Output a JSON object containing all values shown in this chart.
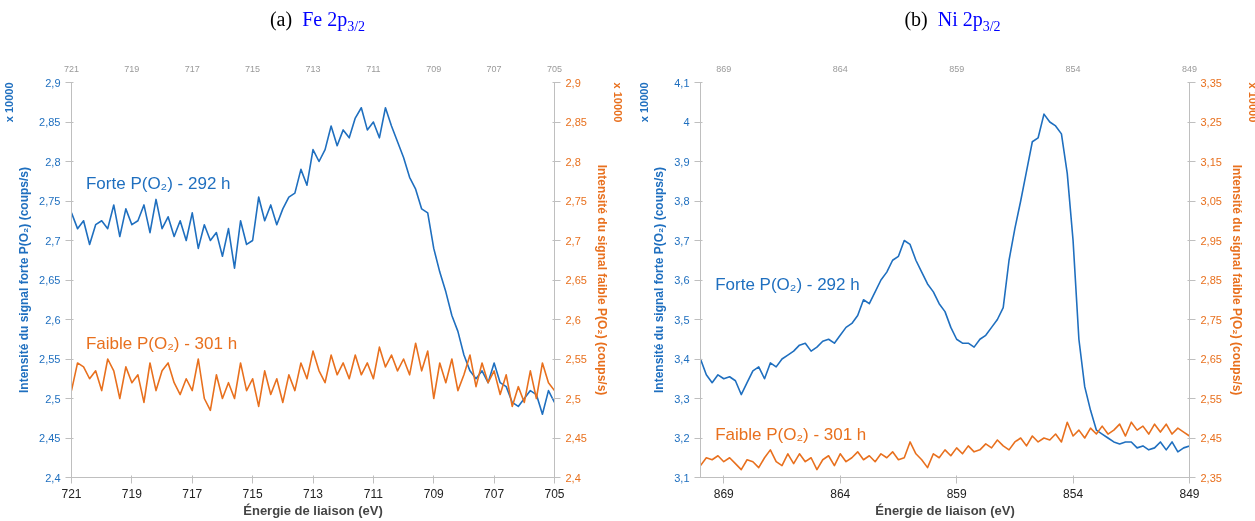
{
  "chart_data": [
    {
      "type": "line",
      "title": "(a) Fe 2p$_{3/2}$",
      "xlabel": "Énergie de liaison (eV)",
      "ylabel": "Intensité du signal forte P(O₂) (coups/s)",
      "y2label": "Intensité du signal faible P(O₂) (coups/s)",
      "annotations": [
        "x 10000",
        "x 10000"
      ],
      "legend": false,
      "grid": false,
      "marker": "none",
      "line_style": "solid",
      "x": [
        721.0,
        720.8,
        720.6,
        720.4,
        720.2,
        720.0,
        719.8,
        719.6,
        719.4,
        719.2,
        719.0,
        718.8,
        718.6,
        718.4,
        718.2,
        718.0,
        717.8,
        717.6,
        717.4,
        717.2,
        717.0,
        716.8,
        716.6,
        716.4,
        716.2,
        716.0,
        715.8,
        715.6,
        715.4,
        715.2,
        715.0,
        714.8,
        714.6,
        714.4,
        714.2,
        714.0,
        713.8,
        713.6,
        713.4,
        713.2,
        713.0,
        712.8,
        712.6,
        712.4,
        712.2,
        712.0,
        711.8,
        711.6,
        711.4,
        711.2,
        711.0,
        710.8,
        710.6,
        710.4,
        710.2,
        710.0,
        709.8,
        709.6,
        709.4,
        709.2,
        709.0,
        708.8,
        708.6,
        708.4,
        708.2,
        708.0,
        707.8,
        707.6,
        707.4,
        707.2,
        707.0,
        706.8,
        706.6,
        706.4,
        706.2,
        706.0,
        705.8,
        705.6,
        705.4,
        705.2,
        705.0
      ],
      "series": [
        {
          "name": "Forte P(O₂) - 292 h",
          "color": "#1f6fbf",
          "values": [
            2.735,
            2.715,
            2.725,
            2.695,
            2.72,
            2.725,
            2.715,
            2.745,
            2.705,
            2.74,
            2.72,
            2.725,
            2.745,
            2.71,
            2.752,
            2.715,
            2.73,
            2.705,
            2.725,
            2.7,
            2.735,
            2.69,
            2.72,
            2.7,
            2.71,
            2.68,
            2.715,
            2.665,
            2.725,
            2.695,
            2.7,
            2.755,
            2.725,
            2.745,
            2.72,
            2.74,
            2.755,
            2.76,
            2.79,
            2.77,
            2.815,
            2.8,
            2.815,
            2.845,
            2.82,
            2.84,
            2.83,
            2.855,
            2.868,
            2.84,
            2.85,
            2.83,
            2.868,
            2.845,
            2.825,
            2.805,
            2.78,
            2.765,
            2.74,
            2.735,
            2.69,
            2.66,
            2.635,
            2.605,
            2.585,
            2.555,
            2.535,
            2.525,
            2.535,
            2.52,
            2.545,
            2.52,
            2.515,
            2.495,
            2.49,
            2.5,
            2.51,
            2.505,
            2.48,
            2.51,
            2.495
          ]
        },
        {
          "name": "Faible P(O₂) - 301 h",
          "color": "#e8701e",
          "axis": "y2",
          "values": [
            2.51,
            2.545,
            2.54,
            2.525,
            2.535,
            2.51,
            2.55,
            2.535,
            2.5,
            2.54,
            2.52,
            2.53,
            2.495,
            2.545,
            2.51,
            2.535,
            2.545,
            2.52,
            2.505,
            2.525,
            2.51,
            2.55,
            2.5,
            2.485,
            2.53,
            2.5,
            2.52,
            2.5,
            2.545,
            2.51,
            2.525,
            2.49,
            2.535,
            2.505,
            2.525,
            2.495,
            2.53,
            2.51,
            2.545,
            2.525,
            2.56,
            2.535,
            2.52,
            2.555,
            2.53,
            2.545,
            2.525,
            2.555,
            2.53,
            2.545,
            2.525,
            2.565,
            2.54,
            2.555,
            2.535,
            2.55,
            2.53,
            2.57,
            2.535,
            2.56,
            2.5,
            2.545,
            2.52,
            2.55,
            2.51,
            2.53,
            2.555,
            2.515,
            2.545,
            2.52,
            2.535,
            2.505,
            2.53,
            2.49,
            2.515,
            2.495,
            2.535,
            2.5,
            2.545,
            2.52,
            2.51
          ]
        }
      ],
      "xlim": [
        721,
        705
      ],
      "xticks": [
        721,
        719,
        717,
        715,
        713,
        711,
        709,
        707,
        705
      ],
      "x2lim": [
        721,
        705
      ],
      "x2ticks": [
        721,
        719,
        717,
        715,
        713,
        711,
        709,
        707,
        705
      ],
      "ylim": [
        2.4,
        2.9
      ],
      "yticks": [
        {
          "value": 2.4,
          "label": "2,4"
        },
        {
          "value": 2.45,
          "label": "2,45"
        },
        {
          "value": 2.5,
          "label": "2,5"
        },
        {
          "value": 2.55,
          "label": "2,55"
        },
        {
          "value": 2.6,
          "label": "2,6"
        },
        {
          "value": 2.65,
          "label": "2,65"
        },
        {
          "value": 2.7,
          "label": "2,7"
        },
        {
          "value": 2.75,
          "label": "2,75"
        },
        {
          "value": 2.8,
          "label": "2,8"
        },
        {
          "value": 2.85,
          "label": "2,85"
        },
        {
          "value": 2.9,
          "label": "2,9"
        }
      ],
      "y2lim": [
        2.4,
        2.9
      ],
      "y2ticks": [
        {
          "value": 2.4,
          "label": "2,4"
        },
        {
          "value": 2.45,
          "label": "2,45"
        },
        {
          "value": 2.5,
          "label": "2,5"
        },
        {
          "value": 2.55,
          "label": "2,55"
        },
        {
          "value": 2.6,
          "label": "2,6"
        },
        {
          "value": 2.65,
          "label": "2,65"
        },
        {
          "value": 2.7,
          "label": "2,7"
        },
        {
          "value": 2.75,
          "label": "2,75"
        },
        {
          "value": 2.8,
          "label": "2,8"
        },
        {
          "value": 2.85,
          "label": "2,85"
        },
        {
          "value": 2.9,
          "label": "2,9"
        }
      ]
    },
    {
      "type": "line",
      "title": "(b) Ni 2p$_{3/2}$",
      "xlabel": "Énergie de liaison (eV)",
      "ylabel": "Intensité du signal forte P(O₂) (coups/s)",
      "y2label": "Intensité du signal faible P(O₂) (coups/s)",
      "annotations": [
        "x 10000",
        "x 10000"
      ],
      "legend": false,
      "grid": false,
      "marker": "none",
      "line_style": "solid",
      "x": [
        870.0,
        869.75,
        869.5,
        869.25,
        869.0,
        868.75,
        868.5,
        868.25,
        868.0,
        867.75,
        867.5,
        867.25,
        867.0,
        866.75,
        866.5,
        866.25,
        866.0,
        865.75,
        865.5,
        865.25,
        865.0,
        864.75,
        864.5,
        864.25,
        864.0,
        863.75,
        863.5,
        863.25,
        863.0,
        862.75,
        862.5,
        862.25,
        862.0,
        861.75,
        861.5,
        861.25,
        861.0,
        860.75,
        860.5,
        860.25,
        860.0,
        859.75,
        859.5,
        859.25,
        859.0,
        858.75,
        858.5,
        858.25,
        858.0,
        857.75,
        857.5,
        857.25,
        857.0,
        856.75,
        856.5,
        856.25,
        856.0,
        855.75,
        855.5,
        855.25,
        855.0,
        854.75,
        854.5,
        854.25,
        854.0,
        853.75,
        853.5,
        853.25,
        853.0,
        852.75,
        852.5,
        852.25,
        852.0,
        851.75,
        851.5,
        851.25,
        851.0,
        850.75,
        850.5,
        850.25,
        850.0,
        849.75,
        849.5,
        849.25,
        849.0
      ],
      "series": [
        {
          "name": "Forte P(O₂) - 292 h",
          "color": "#1f6fbf",
          "values": [
            3.4,
            3.36,
            3.34,
            3.36,
            3.35,
            3.355,
            3.345,
            3.31,
            3.34,
            3.37,
            3.38,
            3.35,
            3.39,
            3.38,
            3.4,
            3.41,
            3.42,
            3.435,
            3.44,
            3.42,
            3.43,
            3.445,
            3.45,
            3.44,
            3.46,
            3.48,
            3.49,
            3.51,
            3.55,
            3.54,
            3.57,
            3.6,
            3.62,
            3.65,
            3.66,
            3.7,
            3.69,
            3.65,
            3.62,
            3.59,
            3.57,
            3.54,
            3.52,
            3.48,
            3.45,
            3.44,
            3.44,
            3.43,
            3.45,
            3.46,
            3.48,
            3.5,
            3.53,
            3.65,
            3.73,
            3.8,
            3.875,
            3.95,
            3.96,
            4.02,
            4.0,
            3.99,
            3.97,
            3.87,
            3.7,
            3.45,
            3.33,
            3.27,
            3.22,
            3.21,
            3.2,
            3.19,
            3.185,
            3.19,
            3.19,
            3.175,
            3.18,
            3.17,
            3.175,
            3.19,
            3.17,
            3.19,
            3.165,
            3.175,
            3.18
          ]
        },
        {
          "name": "Faible P(O₂) - 301 h",
          "color": "#e8701e",
          "axis": "y2",
          "values": [
            2.38,
            2.4,
            2.395,
            2.405,
            2.39,
            2.4,
            2.385,
            2.37,
            2.395,
            2.39,
            2.375,
            2.4,
            2.42,
            2.39,
            2.38,
            2.41,
            2.385,
            2.41,
            2.39,
            2.4,
            2.37,
            2.395,
            2.405,
            2.38,
            2.41,
            2.39,
            2.4,
            2.415,
            2.395,
            2.405,
            2.39,
            2.41,
            2.4,
            2.415,
            2.395,
            2.4,
            2.44,
            2.41,
            2.395,
            2.375,
            2.41,
            2.4,
            2.42,
            2.405,
            2.425,
            2.41,
            2.43,
            2.415,
            2.42,
            2.435,
            2.425,
            2.445,
            2.43,
            2.42,
            2.44,
            2.45,
            2.43,
            2.455,
            2.44,
            2.45,
            2.445,
            2.46,
            2.44,
            2.49,
            2.455,
            2.47,
            2.45,
            2.475,
            2.46,
            2.48,
            2.46,
            2.47,
            2.485,
            2.455,
            2.49,
            2.47,
            2.48,
            2.46,
            2.485,
            2.465,
            2.485,
            2.46,
            2.475,
            2.465,
            2.455
          ]
        }
      ],
      "xlim": [
        870,
        849
      ],
      "xticks": [
        869,
        864,
        859,
        854,
        849
      ],
      "x2lim": [
        870,
        849
      ],
      "x2ticks": [
        869,
        864,
        859,
        854,
        849
      ],
      "ylim": [
        3.1,
        4.1
      ],
      "yticks": [
        {
          "value": 3.1,
          "label": "3,1"
        },
        {
          "value": 3.2,
          "label": "3,2"
        },
        {
          "value": 3.3,
          "label": "3,3"
        },
        {
          "value": 3.4,
          "label": "3,4"
        },
        {
          "value": 3.5,
          "label": "3,5"
        },
        {
          "value": 3.6,
          "label": "3,6"
        },
        {
          "value": 3.7,
          "label": "3,7"
        },
        {
          "value": 3.8,
          "label": "3,8"
        },
        {
          "value": 3.9,
          "label": "3,9"
        },
        {
          "value": 4.0,
          "label": "4"
        },
        {
          "value": 4.1,
          "label": "4,1"
        }
      ],
      "y2lim": [
        2.35,
        3.35
      ],
      "y2ticks": [
        {
          "value": 2.35,
          "label": "2,35"
        },
        {
          "value": 2.45,
          "label": "2,45"
        },
        {
          "value": 2.55,
          "label": "2,55"
        },
        {
          "value": 2.65,
          "label": "2,65"
        },
        {
          "value": 2.75,
          "label": "2,75"
        },
        {
          "value": 2.85,
          "label": "2,85"
        },
        {
          "value": 2.95,
          "label": "2,95"
        },
        {
          "value": 3.05,
          "label": "3,05"
        },
        {
          "value": 3.15,
          "label": "3,15"
        },
        {
          "value": 3.25,
          "label": "3,25"
        },
        {
          "value": 3.35,
          "label": "3,35"
        }
      ]
    }
  ]
}
